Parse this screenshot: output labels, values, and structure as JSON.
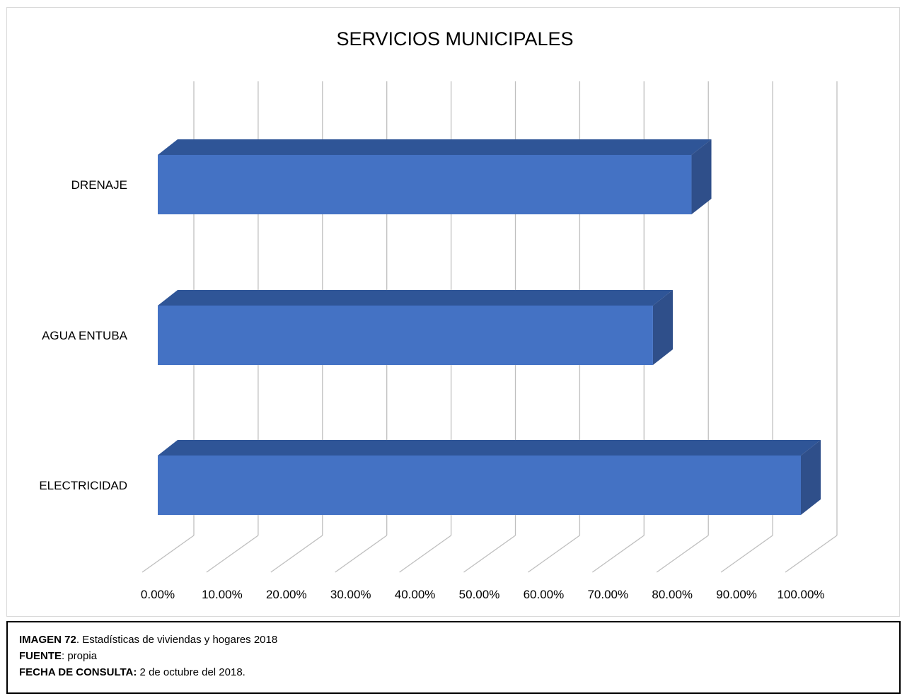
{
  "chart_data": {
    "type": "bar",
    "orientation": "horizontal",
    "style": "3d",
    "title": "SERVICIOS MUNICIPALES",
    "categories": [
      "DRENAJE",
      "AGUA ENTUBA",
      "ELECTRICIDAD"
    ],
    "values": [
      0.83,
      0.77,
      1.0
    ],
    "xlim": [
      0,
      1.0
    ],
    "x_ticks": [
      "0.00%",
      "10.00%",
      "20.00%",
      "30.00%",
      "40.00%",
      "50.00%",
      "60.00%",
      "70.00%",
      "80.00%",
      "90.00%",
      "100.00%"
    ],
    "grid": true,
    "legend": "none",
    "colors": {
      "bar_front": "#4472c4",
      "bar_top": "#2f5597",
      "bar_side": "#2f4f8a",
      "grid": "#bfbfbf"
    }
  },
  "caption": {
    "line1_bold": "IMAGEN 72",
    "line1_text": ". Estadísticas de viviendas y hogares  2018",
    "line2_bold": "FUENTE",
    "line2_text": ": propia",
    "line3_bold": "FECHA DE CONSULTA:",
    "line3_text": " 2 de octubre del 2018."
  }
}
